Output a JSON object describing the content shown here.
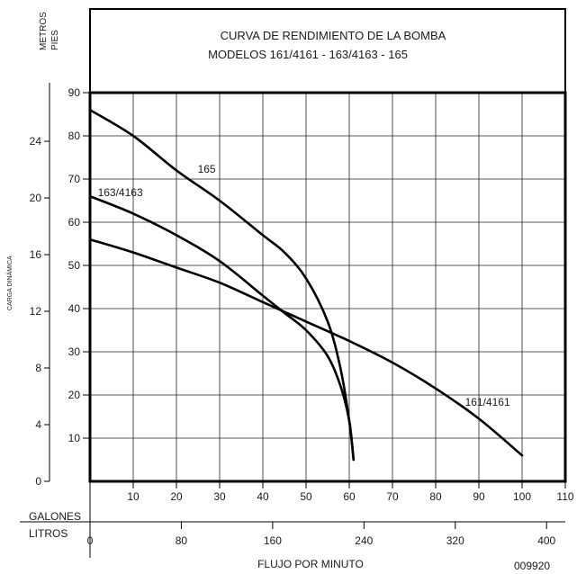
{
  "chart_data": {
    "type": "line",
    "title": "CURVA DE RENDIMIENTO DE LA BOMBA",
    "subtitle": "MODELOS 161/4161 - 163/4163 - 165",
    "left_axis_units": [
      "METROS",
      "PIES"
    ],
    "left_axis_name": "CARGA DINÁMICA",
    "meters_ticks": [
      0,
      4,
      8,
      12,
      16,
      20,
      24
    ],
    "feet_ticks": [
      10,
      20,
      30,
      40,
      50,
      60,
      70,
      80,
      90
    ],
    "feet_range": [
      0,
      90
    ],
    "gallons_label": "GALONES",
    "gallons_ticks": [
      10,
      20,
      30,
      40,
      50,
      60,
      70,
      80,
      90,
      100,
      110
    ],
    "gallons_range": [
      0,
      110
    ],
    "liters_label": "LITROS",
    "liters_ticks": [
      0,
      80,
      160,
      240,
      320,
      400
    ],
    "xlabel": "FLUJO POR MINUTO",
    "code": "009920",
    "series": [
      {
        "name": "165",
        "x_gpm": [
          0,
          10,
          20,
          30,
          40,
          45,
          50,
          55,
          58,
          60,
          61
        ],
        "y_ft": [
          86,
          80,
          72,
          65,
          57,
          53,
          47,
          37,
          26,
          14,
          5
        ]
      },
      {
        "name": "163/4163",
        "x_gpm": [
          0,
          10,
          20,
          30,
          40,
          45,
          50,
          55,
          58,
          60,
          61
        ],
        "y_ft": [
          66,
          62,
          57,
          51,
          43,
          39,
          35,
          29,
          22,
          14,
          5
        ]
      },
      {
        "name": "161/4161",
        "x_gpm": [
          0,
          10,
          20,
          30,
          40,
          50,
          60,
          70,
          80,
          90,
          100
        ],
        "y_ft": [
          56,
          53,
          49.5,
          46,
          41.5,
          37,
          32.5,
          27.5,
          21.5,
          14.5,
          6
        ]
      }
    ]
  }
}
